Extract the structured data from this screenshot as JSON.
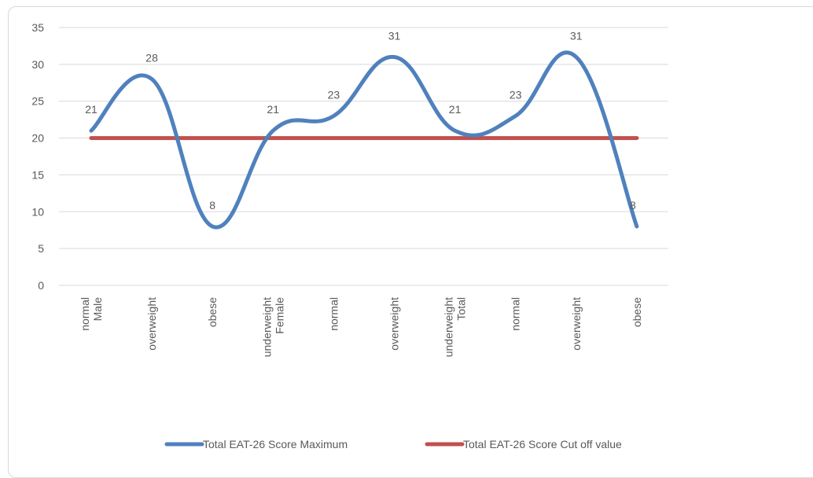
{
  "chart_data": {
    "type": "line",
    "categories": [
      [
        "normal",
        "Male"
      ],
      [
        "overweight"
      ],
      [
        "obese"
      ],
      [
        "underweight",
        "Female"
      ],
      [
        "normal"
      ],
      [
        "overweight"
      ],
      [
        "underweight",
        "Total"
      ],
      [
        "normal"
      ],
      [
        "overweight"
      ],
      [
        "obese"
      ]
    ],
    "series": [
      {
        "name": "Total EAT-26 Score Maximum",
        "values": [
          21,
          28,
          8,
          21,
          23,
          31,
          21,
          23,
          31,
          8
        ],
        "color": "#4f81bd",
        "smooth": true,
        "data_labels": true
      },
      {
        "name": "Total EAT-26 Score Cut off value",
        "values": [
          20,
          20,
          20,
          20,
          20,
          20,
          20,
          20,
          20,
          20
        ],
        "color": "#c0504d",
        "smooth": false,
        "data_labels": false
      }
    ],
    "y_ticks": [
      0,
      5,
      10,
      15,
      20,
      25,
      30,
      35
    ],
    "ylim": [
      0,
      35
    ],
    "grid": true,
    "legend_position": "bottom",
    "colors": {
      "grid": "#d9d9d9",
      "text": "#595959"
    }
  }
}
